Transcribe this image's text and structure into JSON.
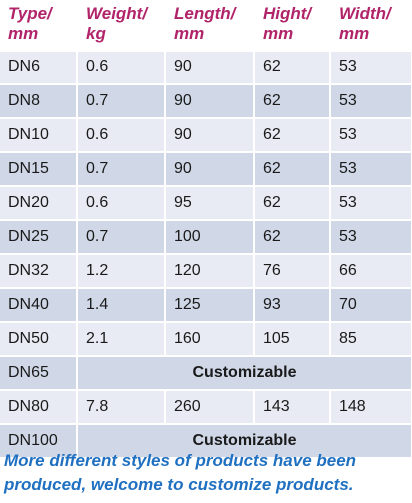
{
  "table": {
    "headers": [
      [
        "Type/",
        "mm"
      ],
      [
        "Weight/",
        "kg"
      ],
      [
        "Length/",
        "mm"
      ],
      [
        "Hight/",
        "mm"
      ],
      [
        "Width/",
        "mm"
      ]
    ],
    "rows": [
      {
        "type": "DN6",
        "weight": "0.6",
        "length": "90",
        "hight": "62",
        "width": "53"
      },
      {
        "type": "DN8",
        "weight": "0.7",
        "length": "90",
        "hight": "62",
        "width": "53"
      },
      {
        "type": "DN10",
        "weight": "0.6",
        "length": "90",
        "hight": "62",
        "width": "53"
      },
      {
        "type": "DN15",
        "weight": "0.7",
        "length": "90",
        "hight": "62",
        "width": "53"
      },
      {
        "type": "DN20",
        "weight": "0.6",
        "length": "95",
        "hight": "62",
        "width": "53"
      },
      {
        "type": "DN25",
        "weight": "0.7",
        "length": "100",
        "hight": "62",
        "width": "53"
      },
      {
        "type": "DN32",
        "weight": "1.2",
        "length": "120",
        "hight": "76",
        "width": "66"
      },
      {
        "type": "DN40",
        "weight": "1.4",
        "length": "125",
        "hight": "93",
        "width": "70"
      },
      {
        "type": "DN50",
        "weight": "2.1",
        "length": "160",
        "hight": "105",
        "width": "85"
      },
      {
        "type": "DN65",
        "merged": "Customizable"
      },
      {
        "type": "DN80",
        "weight": "7.8",
        "length": "260",
        "hight": "143",
        "width": "148"
      },
      {
        "type": "DN100",
        "merged": "Customizable"
      }
    ]
  },
  "footnote": {
    "line1": "More different styles of products have been",
    "line2": "produced, welcome to customize products."
  }
}
